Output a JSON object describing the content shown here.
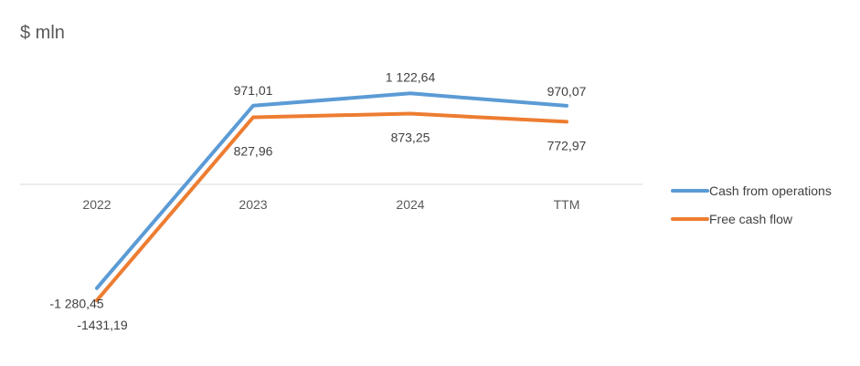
{
  "chart_data": {
    "type": "line",
    "title": "$ mln",
    "categories": [
      "2022",
      "2023",
      "2024",
      "TTM"
    ],
    "series": [
      {
        "name": "Cash from operations",
        "color": "#5b9bd5",
        "values": [
          -1280.45,
          971.01,
          1122.64,
          970.07
        ],
        "labels": [
          "-1 280,45",
          "971,01",
          "1 122,64",
          "970,07"
        ]
      },
      {
        "name": "Free cash flow",
        "color": "#ed7d31",
        "values": [
          -1431.19,
          827.96,
          873.25,
          772.97
        ],
        "labels": [
          "-1431,19",
          "827,96",
          "873,25",
          "772,97"
        ]
      }
    ],
    "ylim": [
      -1700,
      1700
    ],
    "grid": false,
    "legend": "right"
  }
}
